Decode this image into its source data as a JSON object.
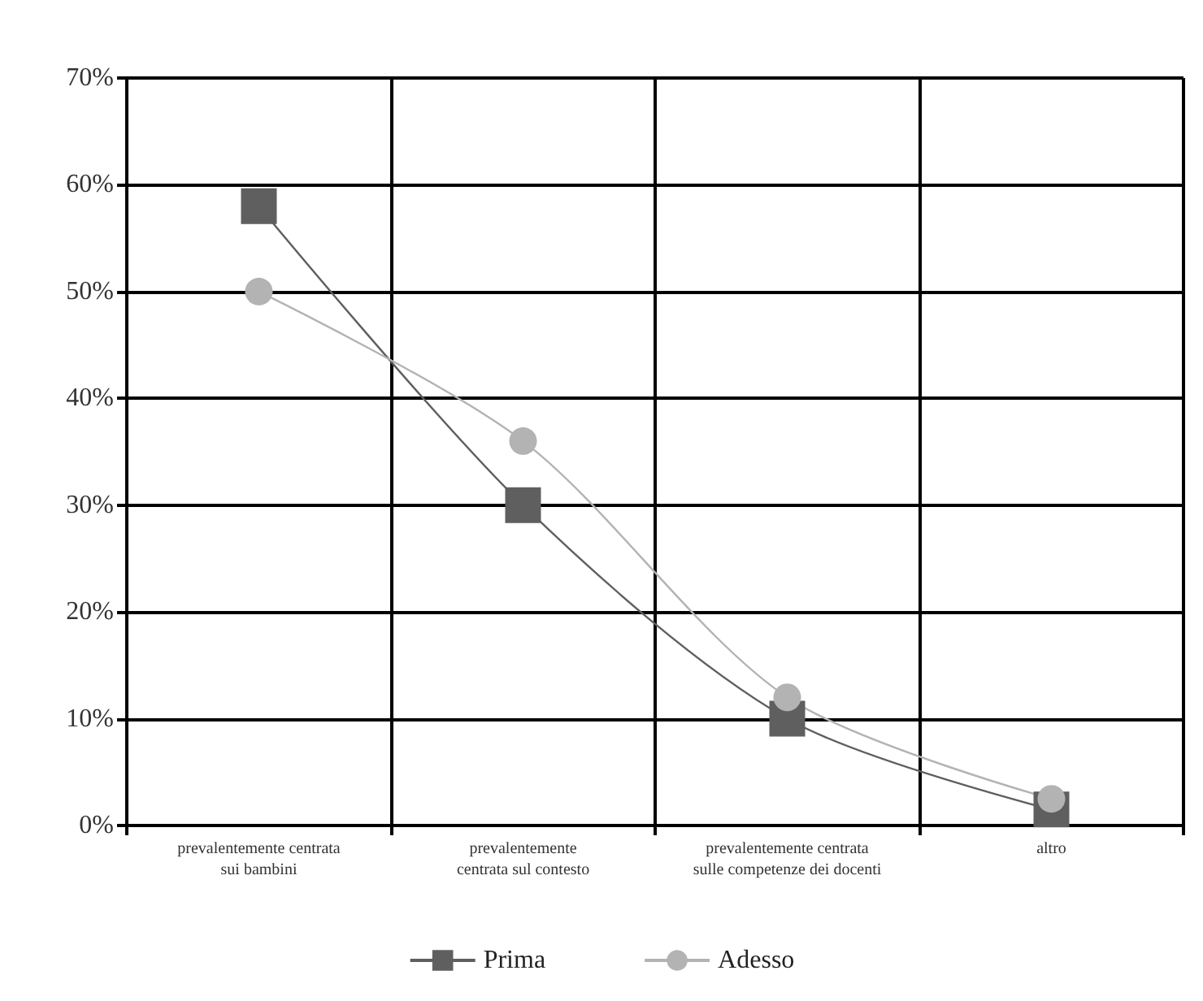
{
  "chart_data": {
    "type": "line",
    "categories": [
      "prevalentemente centrata\nsui bambini",
      "prevalentemente\ncentrata sul contesto",
      "prevalentemente centrata\nsulle competenze dei docenti",
      "altro"
    ],
    "series": [
      {
        "name": "Prima",
        "color": "#5f5f5f",
        "marker": "square",
        "values": [
          58,
          30,
          10,
          1.5
        ]
      },
      {
        "name": "Adesso",
        "color": "#b3b3b3",
        "marker": "circle",
        "values": [
          50,
          36,
          12,
          2.5
        ]
      }
    ],
    "ylim": [
      0,
      70
    ],
    "yticks": [
      {
        "value": 0,
        "label": "0%"
      },
      {
        "value": 10,
        "label": "10%"
      },
      {
        "value": 20,
        "label": "20%"
      },
      {
        "value": 30,
        "label": "30%"
      },
      {
        "value": 40,
        "label": "40%"
      },
      {
        "value": 50,
        "label": "50%"
      },
      {
        "value": 60,
        "label": "60%"
      },
      {
        "value": 70,
        "label": "70%"
      }
    ],
    "grid": true,
    "legend": "bottom",
    "line_style": "solid"
  }
}
